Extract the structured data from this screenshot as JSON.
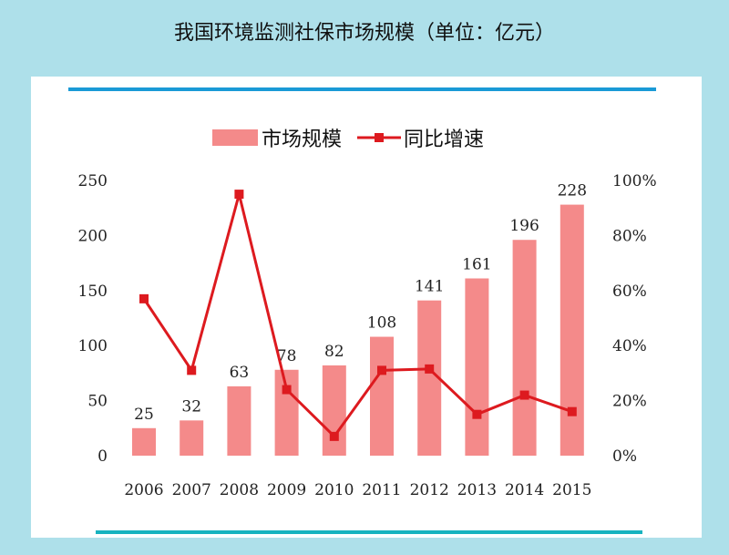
{
  "title": "我国环境监测社保市场规模（单位：亿元）",
  "colors": {
    "bar": "#f48a8a",
    "line": "#dd1a1f",
    "top_rule": "#1a9ad6",
    "bottom_rule": "#17b3bf",
    "background": "#aee0ea"
  },
  "chart_data": {
    "type": "bar",
    "title": "我国环境监测社保市场规模（单位：亿元）",
    "categories": [
      "2006",
      "2007",
      "2008",
      "2009",
      "2010",
      "2011",
      "2012",
      "2013",
      "2014",
      "2015"
    ],
    "series": [
      {
        "name": "市场规模",
        "type": "bar",
        "axis": "left",
        "values": [
          25,
          32,
          63,
          78,
          82,
          108,
          141,
          161,
          196,
          228
        ],
        "data_labels": [
          "25",
          "32",
          "63",
          "78",
          "82",
          "108",
          "141",
          "161",
          "196",
          "228"
        ]
      },
      {
        "name": "同比增速",
        "type": "line",
        "axis": "right",
        "values": [
          57,
          31,
          95,
          24,
          7,
          31,
          31.5,
          15,
          22,
          16
        ]
      }
    ],
    "y_left": {
      "range": [
        0,
        250
      ],
      "ticks": [
        "0",
        "50",
        "100",
        "150",
        "200",
        "250"
      ]
    },
    "y_right": {
      "range": [
        0,
        100
      ],
      "ticks": [
        "0%",
        "20%",
        "40%",
        "60%",
        "80%",
        "100%"
      ]
    },
    "legend": {
      "placement": "top-center",
      "entries": [
        "市场规模",
        "同比增速"
      ]
    },
    "grid": false
  }
}
